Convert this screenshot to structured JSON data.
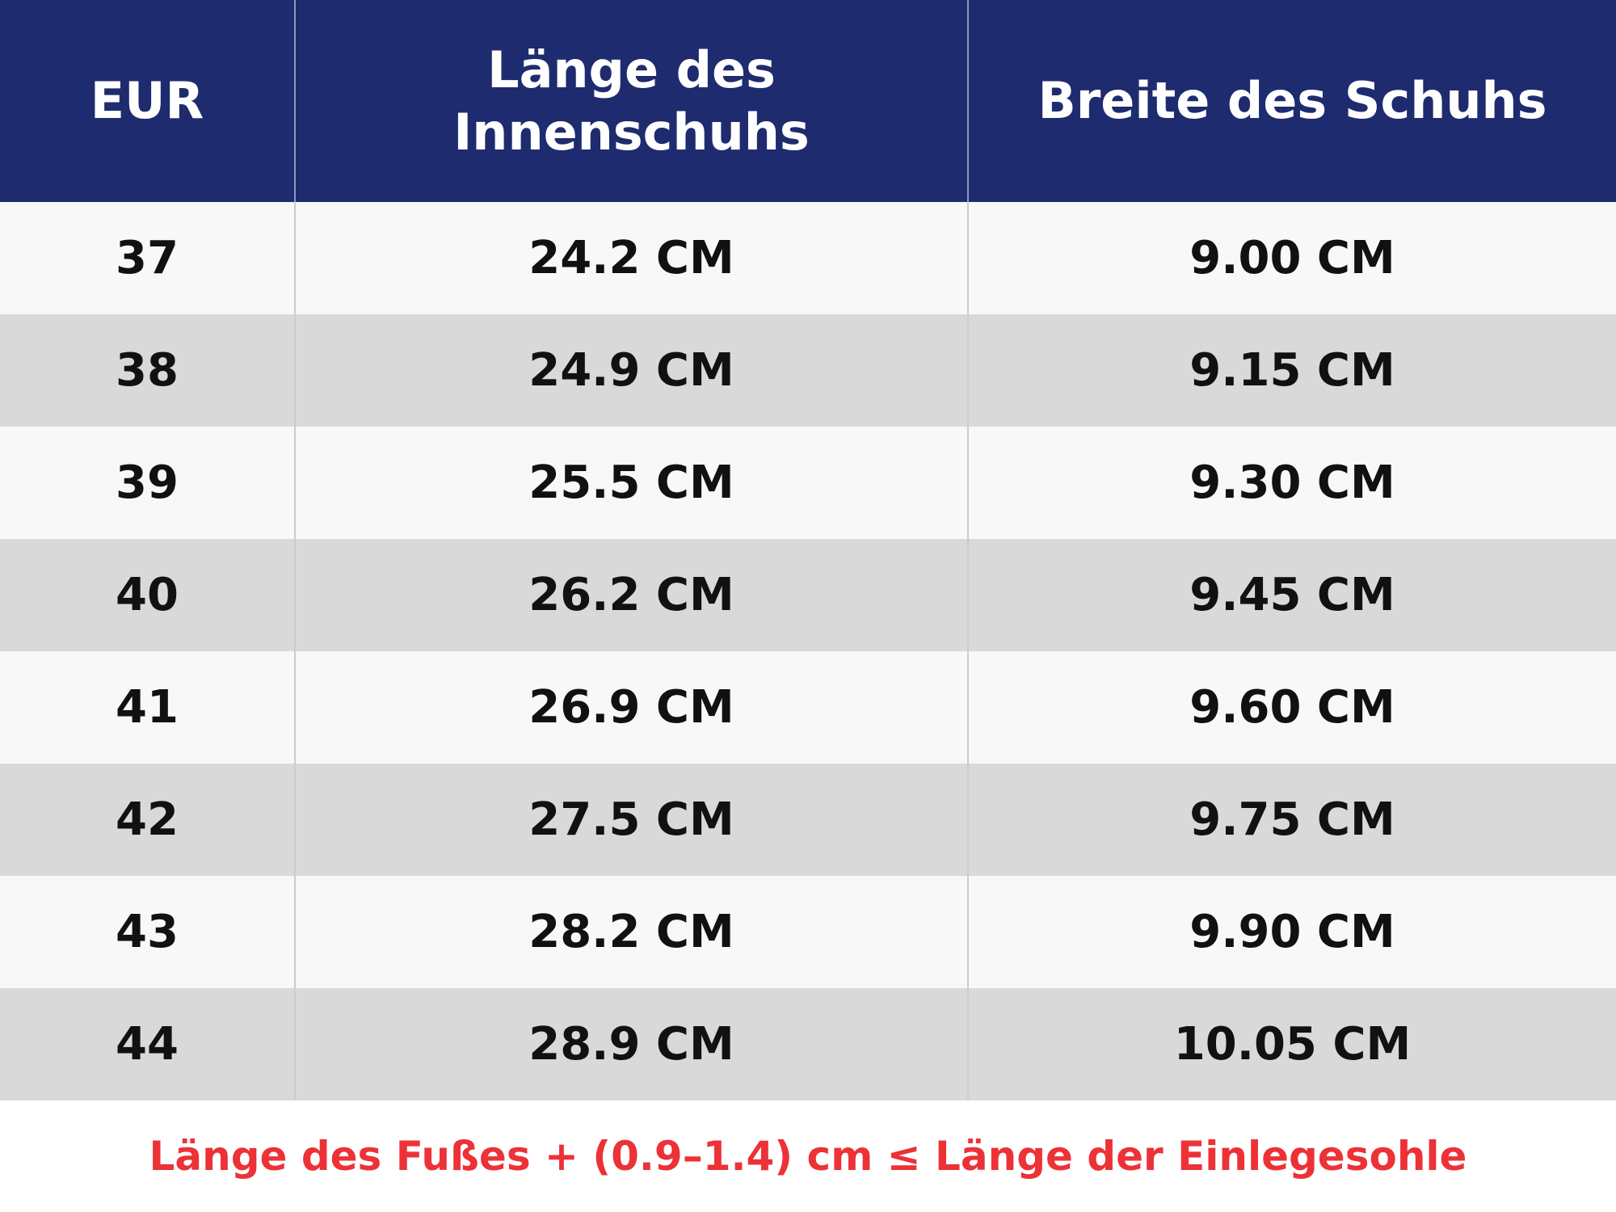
{
  "table": {
    "header": [
      "EUR",
      "Länge des Innenschuhs",
      "Breite des Schuhs"
    ],
    "rows": [
      [
        "37",
        "24.2 CM",
        "9.00 CM"
      ],
      [
        "38",
        "24.9 CM",
        "9.15 CM"
      ],
      [
        "39",
        "25.5 CM",
        "9.30 CM"
      ],
      [
        "40",
        "26.2 CM",
        "9.45 CM"
      ],
      [
        "41",
        "26.9 CM",
        "9.60 CM"
      ],
      [
        "42",
        "27.5 CM",
        "9.75 CM"
      ],
      [
        "43",
        "28.2 CM",
        "9.90 CM"
      ],
      [
        "44",
        "28.9 CM",
        "10.05 CM"
      ]
    ]
  },
  "footer": "Länge des Fußes + (0.9–1.4) cm ≤ Länge der Einlegesohle"
}
